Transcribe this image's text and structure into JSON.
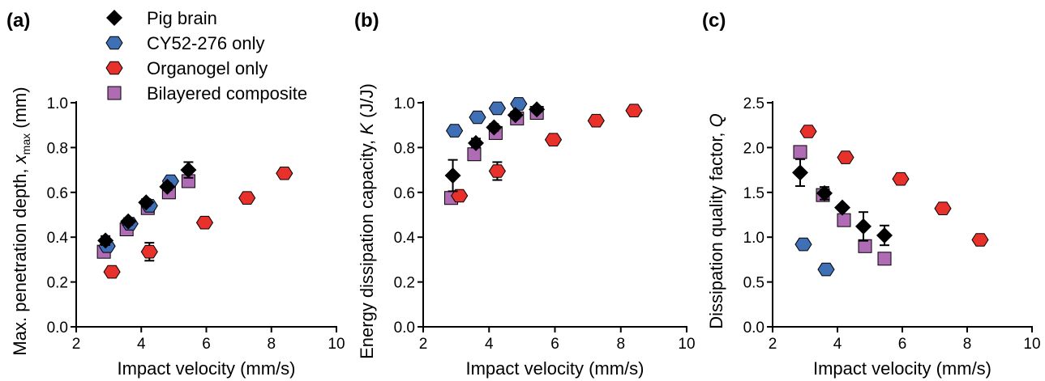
{
  "legend": [
    {
      "name": "Pig brain",
      "marker": "diamond",
      "color": "#000000"
    },
    {
      "name": "CY52-276 only",
      "marker": "hexagon",
      "color": "#3F6FB5"
    },
    {
      "name": "Organogel only",
      "marker": "hexagon",
      "color": "#E8312A"
    },
    {
      "name": "Bilayered composite",
      "marker": "square",
      "color": "#B06BB5"
    }
  ],
  "chart_data": [
    {
      "type": "scatter",
      "panel": "(a)",
      "xlabel": "Impact velocity (mm/s)",
      "ylabel": "Max. penetration depth, ",
      "ylabel_sym": "x",
      "ylabel_sub": "max",
      "ylabel_unit": " (mm)",
      "xlim": [
        2,
        10
      ],
      "ylim": [
        0.0,
        1.0
      ],
      "xticks": [
        "2",
        "4",
        "6",
        "8",
        "10"
      ],
      "yticks": [
        "0.0",
        "0.2",
        "0.4",
        "0.6",
        "0.8",
        "1.0"
      ],
      "series": [
        {
          "name": "Bilayered composite",
          "marker": "square",
          "color": "#B06BB5",
          "x": [
            2.85,
            3.55,
            4.2,
            4.85,
            5.45
          ],
          "y": [
            0.335,
            0.435,
            0.53,
            0.6,
            0.65
          ]
        },
        {
          "name": "CY52-276 only",
          "marker": "hexagon",
          "color": "#3F6FB5",
          "x": [
            2.95,
            3.65,
            4.25,
            4.9
          ],
          "y": [
            0.36,
            0.46,
            0.54,
            0.65
          ]
        },
        {
          "name": "Organogel only",
          "marker": "hexagon",
          "color": "#E8312A",
          "x": [
            3.1,
            4.25,
            5.95,
            7.25,
            8.4
          ],
          "y": [
            0.245,
            0.335,
            0.465,
            0.575,
            0.685
          ],
          "err": [
            0,
            0.04,
            0,
            0,
            0
          ]
        },
        {
          "name": "Pig brain",
          "marker": "diamond",
          "color": "#000000",
          "x": [
            2.9,
            3.6,
            4.15,
            4.8,
            5.45
          ],
          "y": [
            0.385,
            0.47,
            0.555,
            0.625,
            0.7
          ],
          "err": [
            0.02,
            0.015,
            0.015,
            0.015,
            0.035
          ]
        }
      ]
    },
    {
      "type": "scatter",
      "panel": "(b)",
      "xlabel": "Impact velocity (mm/s)",
      "ylabel": "Energy dissipation capacity, ",
      "ylabel_sym": "K",
      "ylabel_sub": "",
      "ylabel_unit": " (J/J)",
      "xlim": [
        2,
        10
      ],
      "ylim": [
        0.0,
        1.0
      ],
      "xticks": [
        "2",
        "4",
        "6",
        "8",
        "10"
      ],
      "yticks": [
        "0.0",
        "0.2",
        "0.4",
        "0.6",
        "0.8",
        "1.0"
      ],
      "series": [
        {
          "name": "Bilayered composite",
          "marker": "square",
          "color": "#B06BB5",
          "x": [
            2.85,
            3.55,
            4.2,
            4.85,
            5.45
          ],
          "y": [
            0.575,
            0.77,
            0.865,
            0.93,
            0.955
          ]
        },
        {
          "name": "CY52-276 only",
          "marker": "hexagon",
          "color": "#3F6FB5",
          "x": [
            2.95,
            3.65,
            4.25,
            4.9
          ],
          "y": [
            0.875,
            0.935,
            0.975,
            0.995
          ]
        },
        {
          "name": "Organogel only",
          "marker": "hexagon",
          "color": "#E8312A",
          "x": [
            3.1,
            4.25,
            5.95,
            7.25,
            8.4
          ],
          "y": [
            0.585,
            0.695,
            0.835,
            0.92,
            0.965
          ],
          "err": [
            0,
            0.04,
            0,
            0,
            0
          ]
        },
        {
          "name": "Pig brain",
          "marker": "diamond",
          "color": "#000000",
          "x": [
            2.9,
            3.6,
            4.15,
            4.8,
            5.45
          ],
          "y": [
            0.675,
            0.82,
            0.89,
            0.945,
            0.97
          ],
          "err": [
            0.07,
            0.02,
            0.015,
            0.015,
            0.01
          ]
        }
      ]
    },
    {
      "type": "scatter",
      "panel": "(c)",
      "xlabel": "Impact velocity (mm/s)",
      "ylabel": "Dissipation quality factor, ",
      "ylabel_sym": "Q",
      "ylabel_sub": "",
      "ylabel_unit": "",
      "xlim": [
        2,
        10
      ],
      "ylim": [
        0.0,
        2.5
      ],
      "xticks": [
        "2",
        "4",
        "6",
        "8",
        "10"
      ],
      "yticks": [
        "0.0",
        "0.5",
        "1.0",
        "1.5",
        "2.0",
        "2.5"
      ],
      "series": [
        {
          "name": "Bilayered composite",
          "marker": "square",
          "color": "#B06BB5",
          "x": [
            2.85,
            3.55,
            4.2,
            4.85,
            5.45
          ],
          "y": [
            1.95,
            1.47,
            1.19,
            0.9,
            0.76
          ]
        },
        {
          "name": "CY52-276 only",
          "marker": "hexagon",
          "color": "#3F6FB5",
          "x": [
            2.95,
            3.65
          ],
          "y": [
            0.92,
            0.64
          ]
        },
        {
          "name": "Organogel only",
          "marker": "hexagon",
          "color": "#E8312A",
          "x": [
            3.1,
            4.25,
            5.95,
            7.25,
            8.4
          ],
          "y": [
            2.18,
            1.89,
            1.65,
            1.32,
            0.97
          ]
        },
        {
          "name": "Pig brain",
          "marker": "diamond",
          "color": "#000000",
          "x": [
            2.85,
            3.6,
            4.15,
            4.8,
            5.45
          ],
          "y": [
            1.72,
            1.49,
            1.33,
            1.12,
            1.02
          ],
          "err": [
            0.15,
            0.07,
            0.03,
            0.16,
            0.11
          ]
        }
      ]
    }
  ]
}
